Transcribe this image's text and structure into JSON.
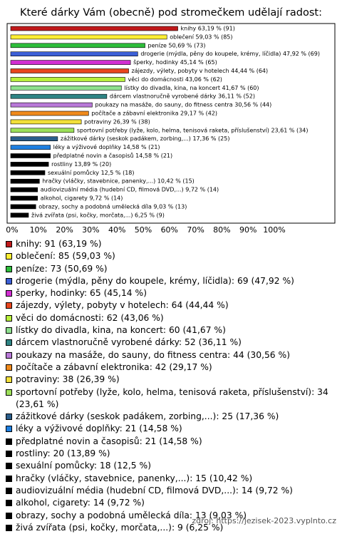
{
  "chart_data": {
    "type": "bar",
    "orientation": "horizontal",
    "title": "Které dárky Vám (obecně) pod stromečkem udělají radost:",
    "values": [
      63.19,
      59.03,
      50.69,
      47.92,
      45.14,
      44.44,
      43.06,
      41.67,
      36.11,
      30.56,
      29.17,
      26.39,
      23.61,
      17.36,
      14.58,
      14.58,
      13.89,
      12.5,
      10.42,
      9.72,
      9.72,
      9.03,
      6.25
    ],
    "value_labels": [
      "knihy 63,19 % (91)",
      "oblečení 59,03 % (85)",
      "peníze 50,69 % (73)",
      "drogerie (mýdla, pěny do koupele, krémy, líčidla) 47,92 % (69)",
      "šperky, hodinky 45,14 % (65)",
      "zájezdy, výlety, pobyty v hotelech 44,44 % (64)",
      "věci do domácnosti 43,06 % (62)",
      "lístky do divadla, kina, na koncert 41,67 % (60)",
      "dárcem vlastnoručně vyrobené dárky 36,11 % (52)",
      "poukazy na masáže, do sauny, do fitness centra 30,56 % (44)",
      "počítače a zábavní elektronika 29,17 % (42)",
      "potraviny 26,39 % (38)",
      "sportovní potřeby (lyže, kolo, helma, tenisová raketa, příslušenství) 23,61 % (34)",
      "zážitkové dárky (seskok padákem, zorbing,...) 17,36 % (25)",
      "léky a výživové doplňky 14,58 % (21)",
      "předplatné novin a časopisů 14,58 % (21)",
      "rostliny 13,89 % (20)",
      "sexuální pomůcky 12,5 % (18)",
      "hračky (vláčky, stavebnice, panenky,...) 10,42 % (15)",
      "audiovizuální média (hudební CD, filmová DVD,...) 9,72 % (14)",
      "alkohol, cigarety 9,72 % (14)",
      "obrazy, sochy a podobná umělecká díla 9,03 % (13)",
      "živá zvířata (psi, kočky, morčata,...) 6,25 % (9)"
    ],
    "legend_labels": [
      "knihy: 91 (63,19 %)",
      "oblečení: 85 (59,03 %)",
      "peníze: 73 (50,69 %)",
      "drogerie (mýdla, pěny do koupele, krémy, líčidla): 69 (47,92 %)",
      "šperky, hodinky: 65 (45,14 %)",
      "zájezdy, výlety, pobyty v hotelech: 64 (44,44 %)",
      "věci do domácnosti: 62 (43,06 %)",
      "lístky do divadla, kina, na koncert: 60 (41,67 %)",
      "dárcem vlastnoručně vyrobené dárky: 52 (36,11 %)",
      "poukazy na masáže, do sauny, do fitness centra: 44 (30,56 %)",
      "počítače a zábavní elektronika: 42 (29,17 %)",
      "potraviny: 38 (26,39 %)",
      "sportovní potřeby (lyže, kolo, helma, tenisová raketa, příslušenství): 34 (23,61 %)",
      "zážitkové dárky (seskok padákem, zorbing,...): 25 (17,36 %)",
      "léky a výživové doplňky: 21 (14,58 %)",
      "předplatné novin a časopisů: 21 (14,58 %)",
      "rostliny: 20 (13,89 %)",
      "sexuální pomůcky: 18 (12,5 %)",
      "hračky (vláčky, stavebnice, panenky,...): 15 (10,42 %)",
      "audiovizuální média (hudební CD, filmová DVD,...): 14 (9,72 %)",
      "alkohol, cigarety: 14 (9,72 %)",
      "obrazy, sochy a podobná umělecká díla: 13 (9,03 %)",
      "živá zvířata (psi, kočky, morčata,...): 9 (6,25 %)"
    ],
    "colors": [
      "#c0191b",
      "#ffee33",
      "#2ebd3b",
      "#3c5fd6",
      "#d12ed1",
      "#e8461e",
      "#b8f03c",
      "#8ee08e",
      "#2e8484",
      "#b979d8",
      "#f08a1c",
      "#f2e03a",
      "#9de05a",
      "#2a5d8a",
      "#1e7fe0",
      "#000000",
      "#000000",
      "#000000",
      "#000000",
      "#000000",
      "#000000",
      "#000000",
      "#000000"
    ],
    "xlim": [
      0,
      100
    ],
    "xticks": [
      {
        "value": 0,
        "label": "0%"
      },
      {
        "value": 10,
        "label": "10%"
      },
      {
        "value": 20,
        "label": "20%"
      },
      {
        "value": 30,
        "label": "30%"
      },
      {
        "value": 40,
        "label": "40%"
      },
      {
        "value": 50,
        "label": "50%"
      },
      {
        "value": 60,
        "label": "60%"
      },
      {
        "value": 70,
        "label": "70%"
      },
      {
        "value": 80,
        "label": "80%"
      },
      {
        "value": 90,
        "label": "90%"
      },
      {
        "value": 100,
        "label": "100%"
      }
    ],
    "source": "zdroj: https://jezisek-2023.vyplnto.cz"
  }
}
